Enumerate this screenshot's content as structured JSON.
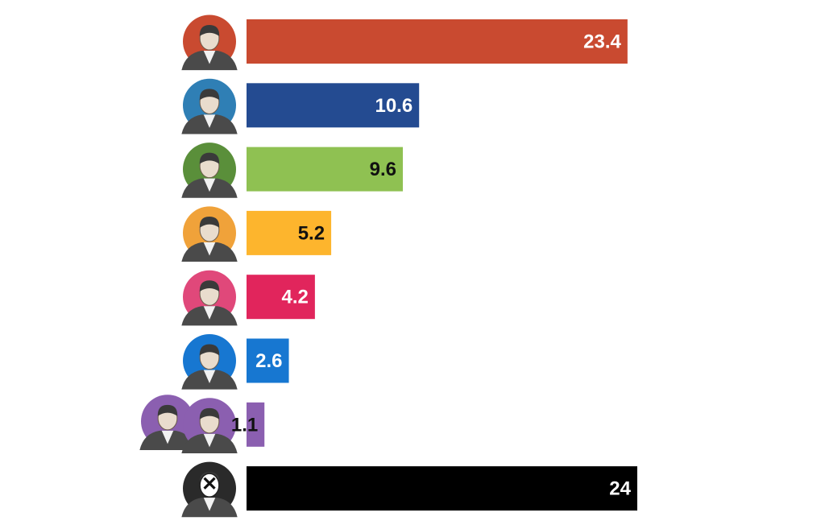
{
  "chart_data": {
    "type": "bar",
    "orientation": "horizontal",
    "title": "",
    "xlabel": "",
    "ylabel": "",
    "xlim": [
      0,
      24
    ],
    "grid": false,
    "legend": "none",
    "categories": [
      "portrait-1",
      "portrait-2",
      "portrait-3",
      "portrait-4",
      "portrait-5",
      "portrait-6",
      "portrait-7",
      "portrait-8-x"
    ],
    "values": [
      23.4,
      10.6,
      9.6,
      5.2,
      4.2,
      2.6,
      1.1,
      24
    ],
    "labels": [
      "23.4",
      "10.6",
      "9.6",
      "5.2",
      "4.2",
      "2.6",
      "1.1",
      "24"
    ],
    "bar_colors": [
      "#c94a30",
      "#244b91",
      "#8fc152",
      "#fdb52d",
      "#e1255c",
      "#1777d1",
      "#8b5fb0",
      "#000000"
    ],
    "label_colors": [
      "#ffffff",
      "#ffffff",
      "#111111",
      "#111111",
      "#ffffff",
      "#ffffff",
      "#111111",
      "#ffffff"
    ],
    "avatar_colors": [
      "#c94a30",
      "#2f7fb5",
      "#5a8f3a",
      "#f0a23a",
      "#e0487a",
      "#1777d1",
      "#8b5fb0",
      "#2a2a2a"
    ],
    "avatar_icons": [
      "person-icon",
      "person-icon",
      "person-icon",
      "person-icon",
      "person-icon",
      "person-icon",
      "two-people-icon",
      "x-mark-person-icon"
    ]
  }
}
